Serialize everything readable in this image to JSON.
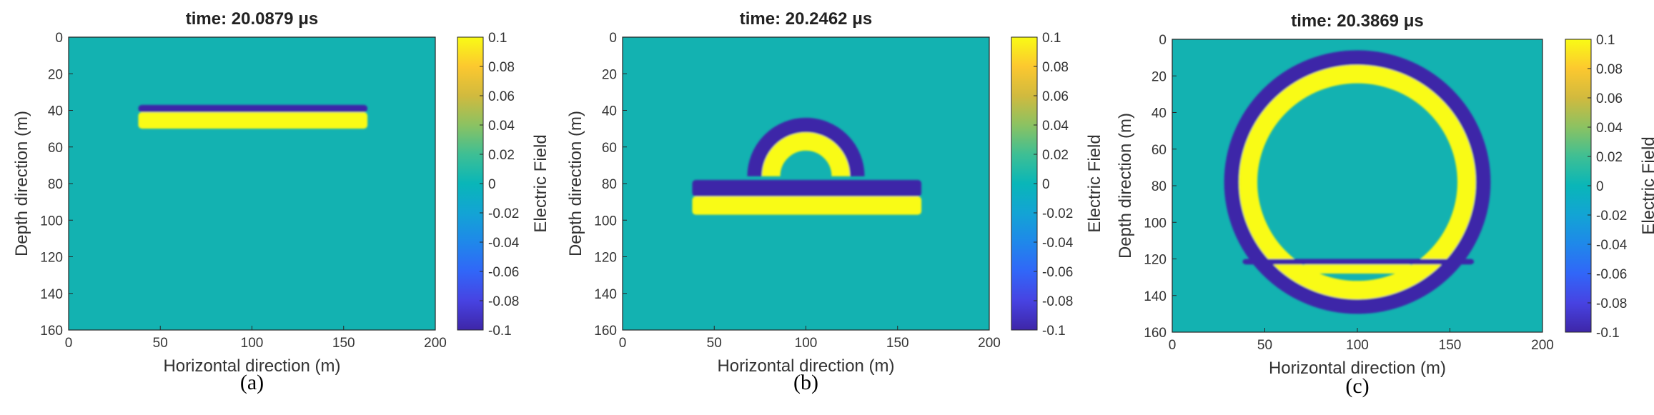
{
  "chart_data": [
    {
      "type": "heatmap",
      "title": "time: 20.0879 μs",
      "caption": "(a)",
      "xlabel": "Horizontal direction (m)",
      "ylabel": "Depth direction (m)",
      "xlim": [
        0,
        200
      ],
      "ylim": [
        160,
        0
      ],
      "x_ticks": [
        0,
        50,
        100,
        150,
        200
      ],
      "y_ticks": [
        0,
        20,
        40,
        60,
        80,
        100,
        120,
        140,
        160
      ],
      "colorbar": {
        "label": "Electric Field",
        "range": [
          -0.1,
          0.1
        ],
        "ticks": [
          0.1,
          0.08,
          0.06,
          0.04,
          0.02,
          0,
          -0.02,
          -0.04,
          -0.06,
          -0.08,
          -0.1
        ],
        "colormap": "parula"
      },
      "features": [
        {
          "shape": "band",
          "x": [
            38,
            163
          ],
          "y": [
            37,
            41
          ],
          "value": -0.1
        },
        {
          "shape": "band",
          "x": [
            38,
            163
          ],
          "y": [
            41,
            50
          ],
          "value": 0.1
        }
      ]
    },
    {
      "type": "heatmap",
      "title": "time: 20.2462 μs",
      "caption": "(b)",
      "xlabel": "Horizontal direction (m)",
      "ylabel": "Depth direction (m)",
      "xlim": [
        0,
        200
      ],
      "ylim": [
        160,
        0
      ],
      "x_ticks": [
        0,
        50,
        100,
        150,
        200
      ],
      "y_ticks": [
        0,
        20,
        40,
        60,
        80,
        100,
        120,
        140,
        160
      ],
      "colorbar": {
        "label": "Electric Field",
        "range": [
          -0.1,
          0.1
        ],
        "ticks": [
          0.1,
          0.08,
          0.06,
          0.04,
          0.02,
          0,
          -0.02,
          -0.04,
          -0.06,
          -0.08,
          -0.1
        ],
        "colormap": "parula"
      },
      "features": [
        {
          "shape": "half-ring",
          "center": [
            100,
            76
          ],
          "radius": [
            24,
            32
          ],
          "value": -0.1
        },
        {
          "shape": "half-ring",
          "center": [
            100,
            76
          ],
          "radius": [
            14,
            24
          ],
          "value": 0.1
        },
        {
          "shape": "band",
          "x": [
            38,
            163
          ],
          "y": [
            78,
            87
          ],
          "value": -0.1
        },
        {
          "shape": "band",
          "x": [
            38,
            163
          ],
          "y": [
            87,
            97
          ],
          "value": 0.1
        }
      ]
    },
    {
      "type": "heatmap",
      "title": "time: 20.3869 μs",
      "caption": "(c)",
      "xlabel": "Horizontal direction (m)",
      "ylabel": "Depth direction (m)",
      "xlim": [
        0,
        200
      ],
      "ylim": [
        160,
        0
      ],
      "x_ticks": [
        0,
        50,
        100,
        150,
        200
      ],
      "y_ticks": [
        0,
        20,
        40,
        60,
        80,
        100,
        120,
        140,
        160
      ],
      "colorbar": {
        "label": "Electric Field",
        "range": [
          -0.1,
          0.1
        ],
        "ticks": [
          0.1,
          0.08,
          0.06,
          0.04,
          0.02,
          0,
          -0.02,
          -0.04,
          -0.06,
          -0.08,
          -0.1
        ],
        "colormap": "parula"
      },
      "features": [
        {
          "shape": "ring",
          "center": [
            100,
            78
          ],
          "radius": [
            64,
            72
          ],
          "value": -0.1
        },
        {
          "shape": "ring",
          "center": [
            100,
            78
          ],
          "radius": [
            54,
            64
          ],
          "value": 0.1
        },
        {
          "shape": "band",
          "x": [
            38,
            163
          ],
          "y": [
            120,
            123
          ],
          "value": -0.1
        },
        {
          "shape": "band",
          "x": [
            70,
            130
          ],
          "y": [
            123,
            128
          ],
          "value": 0.1
        }
      ]
    }
  ]
}
